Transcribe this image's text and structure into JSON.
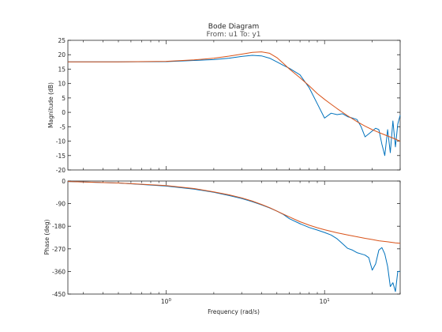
{
  "chart_data": [
    {
      "type": "line",
      "title": "Bode Diagram",
      "subtitle": "From: u1  To: y1",
      "xlabel": "",
      "ylabel": "Magnitude (dB)",
      "xscale": "log",
      "xlim": [
        0.24,
        30
      ],
      "ylim": [
        -20,
        25
      ],
      "yticks": [
        -20,
        -15,
        -10,
        -5,
        0,
        5,
        10,
        15,
        20,
        25
      ],
      "grid": false,
      "series": [
        {
          "color": "#0072BD",
          "x": [
            0.24,
            0.5,
            1.0,
            1.5,
            2.0,
            2.5,
            3.0,
            3.5,
            4.0,
            4.5,
            5.0,
            5.5,
            6.0,
            7.0,
            8.0,
            9.0,
            10.0,
            11.0,
            12.0,
            13.0,
            14.0,
            15.0,
            16.0,
            17.0,
            18.0,
            19.0,
            20.0,
            21.0,
            22.0,
            23.0,
            24.0,
            25.0,
            26.0,
            27.0,
            28.0,
            29.0,
            30.0
          ],
          "y": [
            17.5,
            17.5,
            17.6,
            18.0,
            18.3,
            18.8,
            19.4,
            19.8,
            19.6,
            18.8,
            17.5,
            16.3,
            15.3,
            13.0,
            8.5,
            3.0,
            -2.0,
            -0.3,
            -0.8,
            -0.5,
            -1.5,
            -2.0,
            -2.5,
            -5.0,
            -8.5,
            -7.5,
            -6.5,
            -5.5,
            -6.0,
            -11.0,
            -15.0,
            -6.0,
            -14.0,
            -3.0,
            -12.0,
            -4.0,
            -1.0
          ]
        },
        {
          "color": "#D95319",
          "x": [
            0.24,
            0.5,
            1.0,
            1.5,
            2.0,
            2.5,
            3.0,
            3.5,
            4.0,
            4.5,
            5.0,
            5.5,
            6.0,
            7.0,
            8.0,
            9.0,
            10.0,
            11.0,
            12.0,
            14.0,
            16.0,
            18.0,
            20.0,
            22.0,
            25.0,
            28.0,
            30.0
          ],
          "y": [
            17.5,
            17.5,
            17.7,
            18.2,
            18.8,
            19.5,
            20.2,
            20.8,
            21.0,
            20.5,
            19.0,
            17.0,
            15.0,
            12.0,
            9.2,
            6.5,
            4.5,
            2.8,
            1.3,
            -1.2,
            -3.2,
            -4.8,
            -6.0,
            -7.0,
            -8.2,
            -9.3,
            -10.0
          ]
        }
      ]
    },
    {
      "type": "line",
      "title": "",
      "xlabel": "Frequency  (rad/s)",
      "ylabel": "Phase (deg)",
      "xscale": "log",
      "xlim": [
        0.24,
        30
      ],
      "xticklabels": [
        "10^0",
        "10^1"
      ],
      "ylim": [
        -450,
        0
      ],
      "yticks": [
        -450,
        -360,
        -270,
        -180,
        -90,
        0
      ],
      "grid": false,
      "series": [
        {
          "color": "#0072BD",
          "x": [
            0.24,
            0.5,
            1.0,
            1.5,
            2.0,
            2.5,
            3.0,
            3.5,
            4.0,
            4.5,
            5.0,
            5.5,
            6.0,
            7.0,
            8.0,
            9.0,
            10.0,
            11.0,
            12.0,
            13.0,
            14.0,
            15.0,
            16.0,
            17.0,
            18.0,
            19.0,
            20.0,
            21.0,
            22.0,
            23.0,
            24.0,
            25.0,
            26.0,
            27.0,
            28.0,
            29.0,
            30.0
          ],
          "y": [
            -2,
            -8,
            -20,
            -32,
            -45,
            -58,
            -70,
            -82,
            -95,
            -107,
            -120,
            -133,
            -150,
            -170,
            -185,
            -195,
            -205,
            -215,
            -230,
            -250,
            -268,
            -275,
            -285,
            -290,
            -295,
            -305,
            -355,
            -330,
            -275,
            -265,
            -290,
            -340,
            -420,
            -405,
            -440,
            -360,
            -360
          ]
        },
        {
          "color": "#D95319",
          "x": [
            0.24,
            0.5,
            1.0,
            1.5,
            2.0,
            2.5,
            3.0,
            3.5,
            4.0,
            4.5,
            5.0,
            5.5,
            6.0,
            7.0,
            8.0,
            9.0,
            10.0,
            12.0,
            14.0,
            16.0,
            18.0,
            20.0,
            22.0,
            25.0,
            28.0,
            30.0
          ],
          "y": [
            -2,
            -8,
            -18,
            -30,
            -43,
            -55,
            -67,
            -80,
            -93,
            -106,
            -120,
            -132,
            -143,
            -162,
            -176,
            -186,
            -194,
            -206,
            -215,
            -222,
            -228,
            -233,
            -238,
            -242,
            -246,
            -248
          ]
        }
      ]
    }
  ]
}
